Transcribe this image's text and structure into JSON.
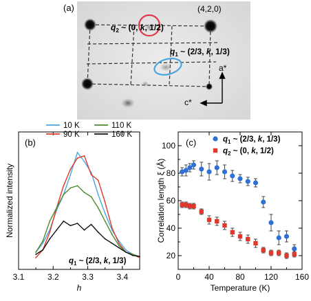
{
  "panels": {
    "a": {
      "panel_label": "(a)",
      "q2_label": "q",
      "q2_sub": "2",
      "q2_rest": " ~ (0, ",
      "q2_k": "k",
      "q2_tail": ", 1/2)",
      "bragg_label": "(4,2,0)",
      "q1_label": "q",
      "q1_sub": "1",
      "q1_rest": " ~ (2/3, ",
      "q1_k": "k",
      "q1_tail": ", 1/3)",
      "a_star": "a*",
      "c_star": "c*",
      "q2_color": "#e0394a",
      "q1_color": "#4aa6e0"
    },
    "b": {
      "panel_label": "(b)"
    },
    "c": {
      "panel_label": "(c)"
    }
  },
  "chart_data": [
    {
      "type": "line",
      "panel": "(b)",
      "xlabel": "h",
      "ylabel": "Normalized intensity",
      "xlim": [
        3.1,
        3.45
      ],
      "xticks": [
        "3.1",
        "3.2",
        "3.3",
        "3.4"
      ],
      "y_ticks_shown": false,
      "legend_position": "top",
      "annotation": "q1 ~ (2/3, k, 1/3)",
      "annotation_parts": {
        "q": "q",
        "sub": "1",
        "rest": " ~ (2/3, ",
        "k": "k",
        "tail": ", 1/3)"
      },
      "x": [
        3.15,
        3.17,
        3.19,
        3.21,
        3.23,
        3.25,
        3.27,
        3.29,
        3.31,
        3.33,
        3.35,
        3.37,
        3.39,
        3.41,
        3.43,
        3.45
      ],
      "series": [
        {
          "name": "10 K",
          "color": "#4aa6e0",
          "values": [
            0.1,
            0.18,
            0.3,
            0.48,
            0.62,
            0.8,
            1.0,
            0.92,
            0.82,
            0.62,
            0.45,
            0.3,
            0.2,
            0.12,
            0.08,
            0.05
          ]
        },
        {
          "name": "90 K",
          "color": "#e0392b",
          "values": [
            0.05,
            0.12,
            0.28,
            0.5,
            0.7,
            0.85,
            0.95,
            0.97,
            0.8,
            0.75,
            0.55,
            0.32,
            0.18,
            0.1,
            0.08,
            0.05
          ]
        },
        {
          "name": "110 K",
          "color": "#4f8a2c",
          "values": [
            0.1,
            0.2,
            0.38,
            0.5,
            0.62,
            0.68,
            0.7,
            0.64,
            0.6,
            0.5,
            0.38,
            0.26,
            0.16,
            0.1,
            0.08,
            0.06
          ]
        },
        {
          "name": "160 K",
          "color": "#111111",
          "values": [
            0.08,
            0.12,
            0.22,
            0.3,
            0.38,
            0.34,
            0.36,
            0.3,
            0.35,
            0.28,
            0.22,
            0.18,
            0.14,
            0.1,
            0.07,
            0.06
          ]
        }
      ]
    },
    {
      "type": "scatter",
      "panel": "(c)",
      "xlabel": "Temperature (K)",
      "ylabel": "Correlation length ξ (Å)",
      "xlim": [
        0,
        160
      ],
      "ylim": [
        10,
        110
      ],
      "xticks": [
        "0",
        "40",
        "80",
        "120",
        "160"
      ],
      "yticks": [
        "20",
        "40",
        "60",
        "80",
        "100"
      ],
      "legend_position": "top-right",
      "series": [
        {
          "name": "q1 ~ (2/3, k, 1/3)",
          "name_parts": {
            "q": "q",
            "sub": "1",
            "rest": " ~ (2/3, ",
            "k": "k",
            "tail": ", 1/3)"
          },
          "marker": "circle",
          "color": "#2f6fd6",
          "points": [
            {
              "x": 5,
              "y": 81,
              "err": 3
            },
            {
              "x": 10,
              "y": 82,
              "err": 4
            },
            {
              "x": 15,
              "y": 84,
              "err": 3
            },
            {
              "x": 20,
              "y": 86,
              "err": 3
            },
            {
              "x": 30,
              "y": 83,
              "err": 5
            },
            {
              "x": 40,
              "y": 81,
              "err": 6
            },
            {
              "x": 50,
              "y": 84,
              "err": 5
            },
            {
              "x": 60,
              "y": 81,
              "err": 5
            },
            {
              "x": 70,
              "y": 78,
              "err": 4
            },
            {
              "x": 80,
              "y": 76,
              "err": 3
            },
            {
              "x": 90,
              "y": 74,
              "err": 3
            },
            {
              "x": 100,
              "y": 73,
              "err": 3
            },
            {
              "x": 110,
              "y": 59,
              "err": 4
            },
            {
              "x": 120,
              "y": 44,
              "err": 6
            },
            {
              "x": 130,
              "y": 33,
              "err": 5
            },
            {
              "x": 140,
              "y": 34,
              "err": 4
            },
            {
              "x": 150,
              "y": 25,
              "err": 3
            }
          ]
        },
        {
          "name": "q2 ~ (0, k, 1/2)",
          "name_parts": {
            "q": "q",
            "sub": "2",
            "rest": " ~ (0, ",
            "k": "k",
            "tail": ", 1/2)"
          },
          "marker": "square",
          "color": "#e0392b",
          "points": [
            {
              "x": 5,
              "y": 57,
              "err": 2
            },
            {
              "x": 10,
              "y": 57,
              "err": 2
            },
            {
              "x": 15,
              "y": 56,
              "err": 2
            },
            {
              "x": 20,
              "y": 56,
              "err": 2
            },
            {
              "x": 30,
              "y": 52,
              "err": 2
            },
            {
              "x": 40,
              "y": 46,
              "err": 3
            },
            {
              "x": 50,
              "y": 45,
              "err": 3
            },
            {
              "x": 60,
              "y": 42,
              "err": 3
            },
            {
              "x": 70,
              "y": 37,
              "err": 3
            },
            {
              "x": 80,
              "y": 34,
              "err": 3
            },
            {
              "x": 90,
              "y": 32,
              "err": 3
            },
            {
              "x": 100,
              "y": 29,
              "err": 3
            },
            {
              "x": 110,
              "y": 24,
              "err": 2
            },
            {
              "x": 120,
              "y": 22,
              "err": 2
            },
            {
              "x": 130,
              "y": 22,
              "err": 2
            },
            {
              "x": 140,
              "y": 20,
              "err": 2
            },
            {
              "x": 150,
              "y": 21,
              "err": 2
            }
          ]
        }
      ]
    }
  ]
}
